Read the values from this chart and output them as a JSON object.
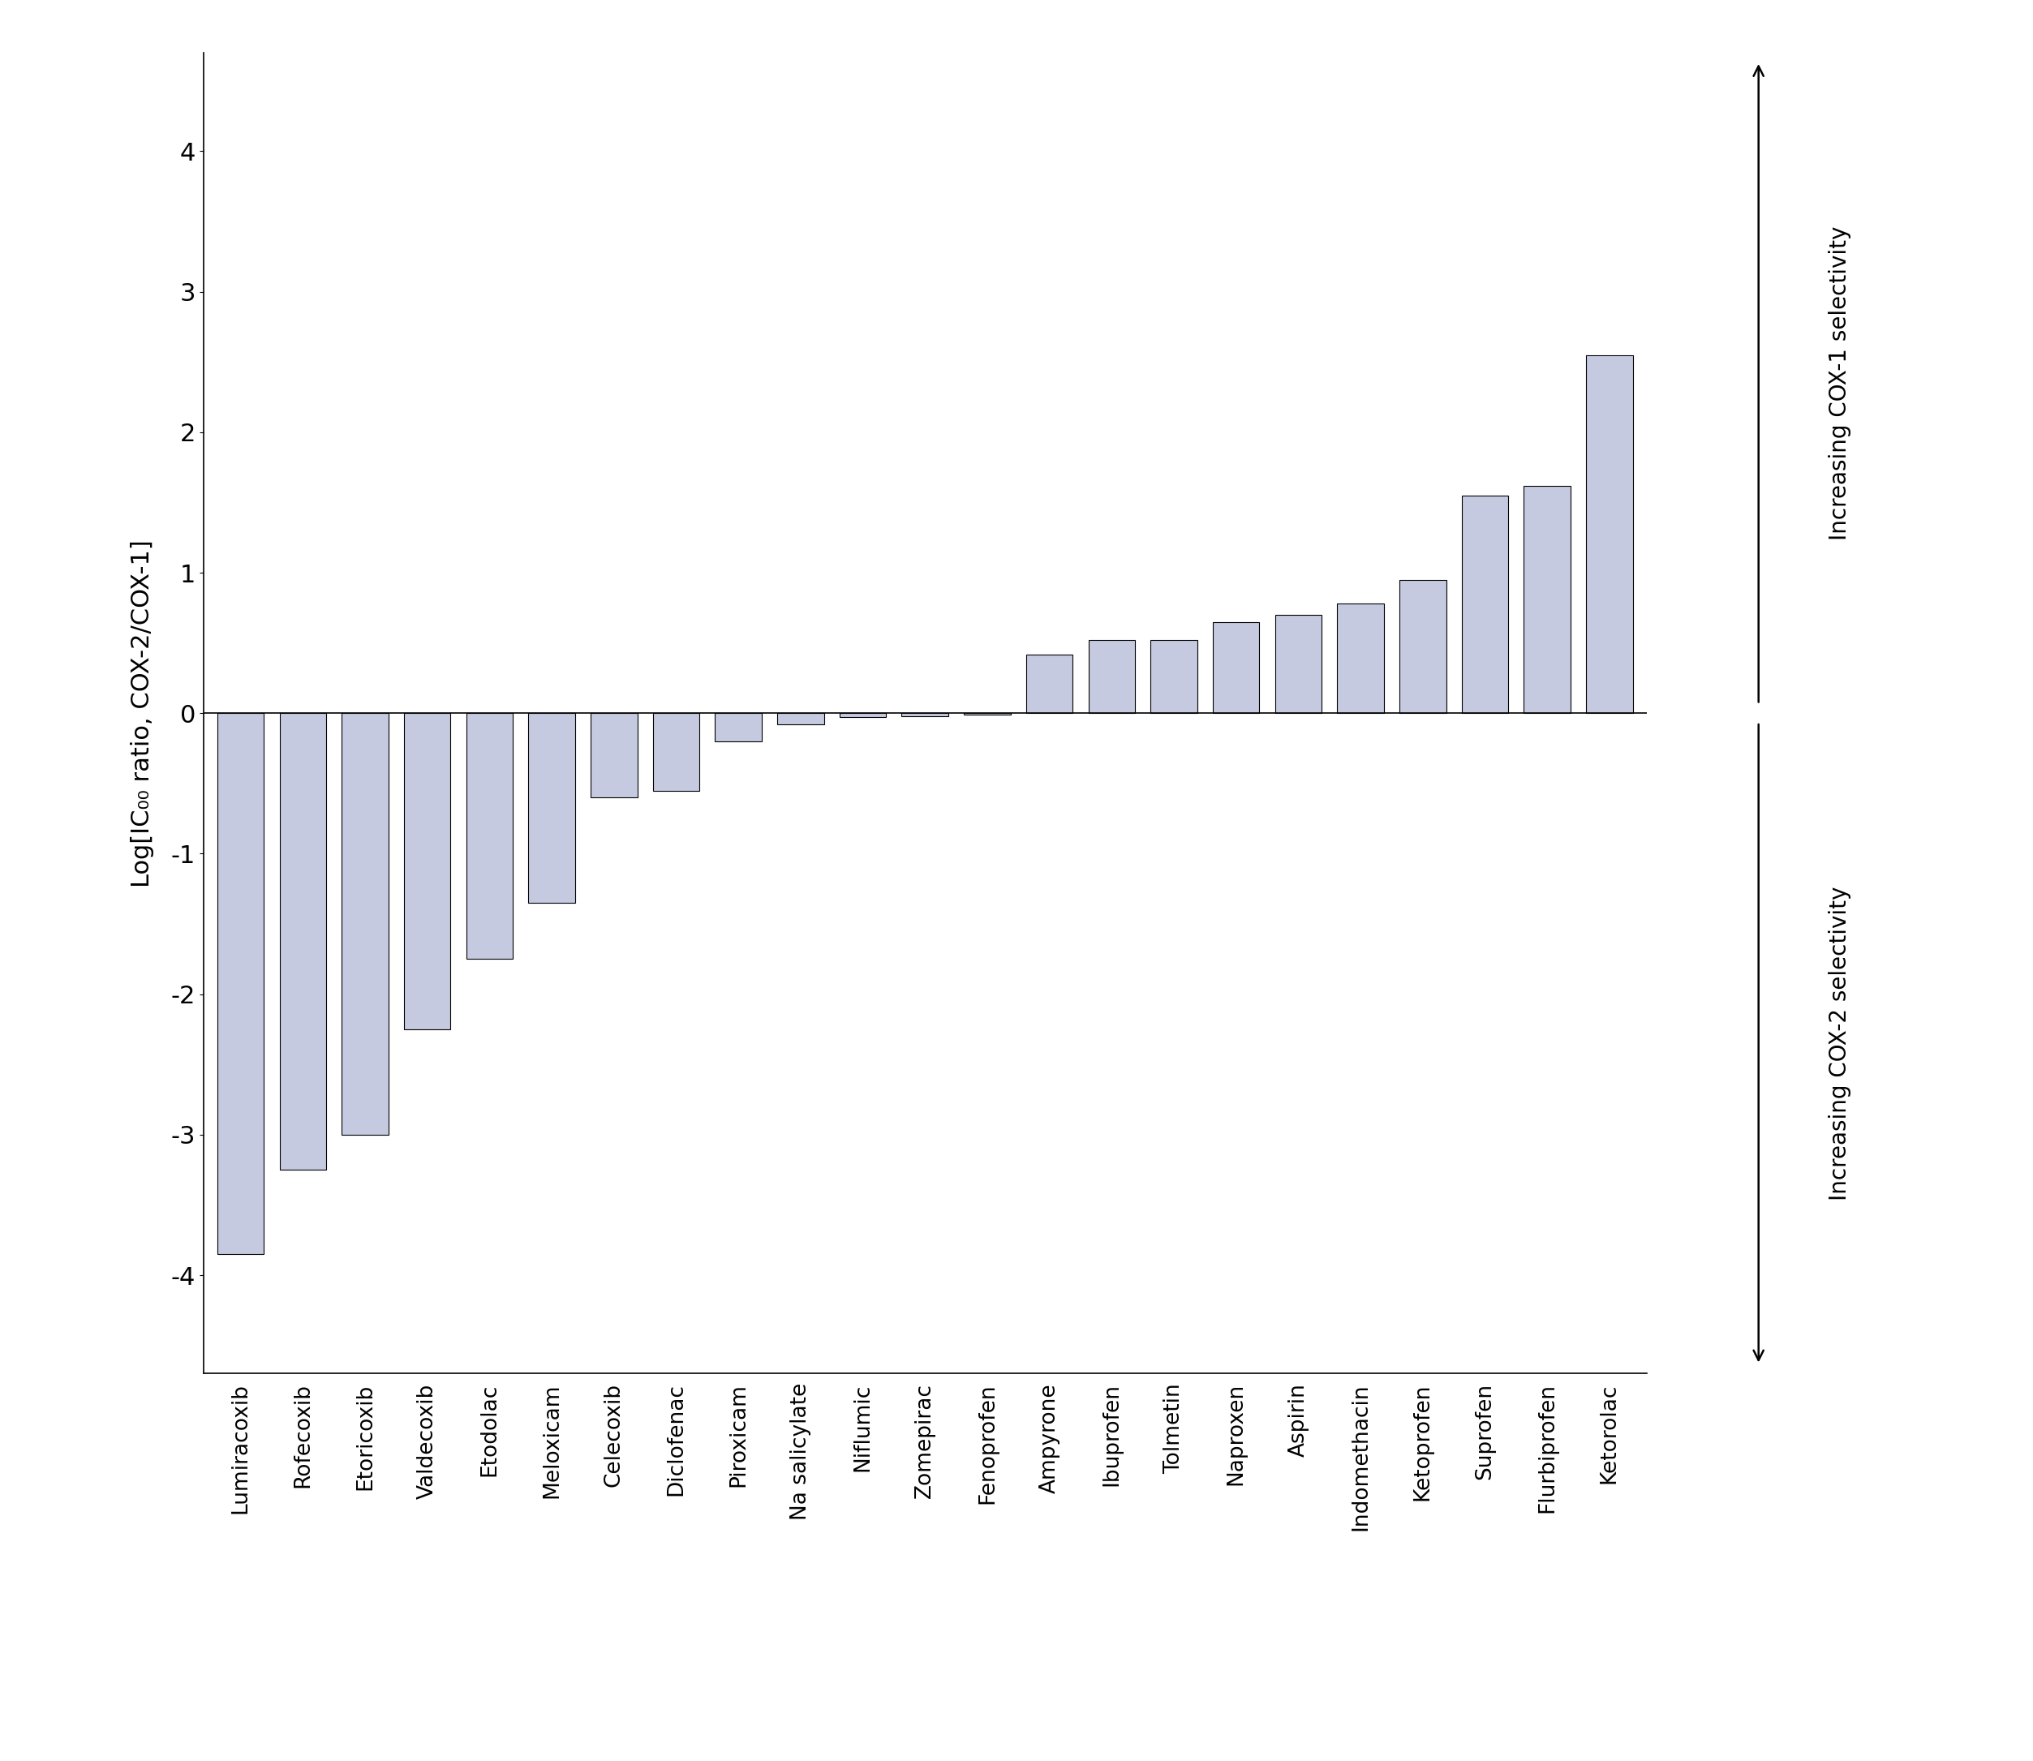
{
  "drugs": [
    "Lumiracoxib",
    "Rofecoxib",
    "Etoricoxib",
    "Valdecoxib",
    "Etodolac",
    "Meloxicam",
    "Celecoxib",
    "Diclofenac",
    "Piroxicam",
    "Na salicylate",
    "Niflumic",
    "Zomepirac",
    "Fenoprofen",
    "Ampyrone",
    "Ibuprofen",
    "Tolmetin",
    "Naproxen",
    "Aspirin",
    "Indomethacin",
    "Ketoprofen",
    "Suprofen",
    "Flurbiprofen",
    "Ketorolac"
  ],
  "values": [
    -3.85,
    -3.25,
    -3.0,
    -2.25,
    -1.75,
    -1.35,
    -0.6,
    -0.55,
    -0.2,
    -0.08,
    -0.03,
    -0.02,
    -0.01,
    0.42,
    0.52,
    0.52,
    0.65,
    0.7,
    0.78,
    0.95,
    1.55,
    1.62,
    2.55
  ],
  "bar_color": "#c5cae0",
  "bar_edge_color": "#000000",
  "ylabel": "Log[IC₀₀ ratio, COX-2/COX-1]",
  "ylim": [
    -4.7,
    4.7
  ],
  "yticks": [
    -4,
    -3,
    -2,
    -1,
    0,
    1,
    2,
    3,
    4
  ],
  "right_label_top": "Increasing COX-1 selectivity",
  "right_label_bottom": "Increasing COX-2 selectivity",
  "background_color": "#ffffff",
  "bar_width": 0.75
}
